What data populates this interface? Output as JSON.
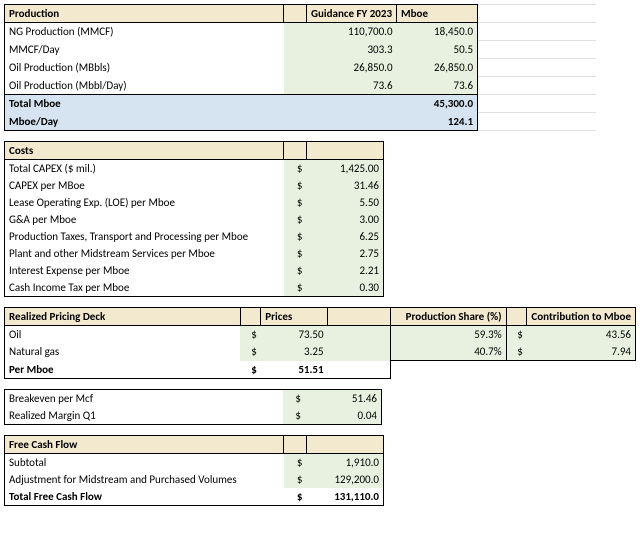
{
  "colors": {
    "header_bg": "#f3e9cf",
    "alt_row_bg": "#e8f1df",
    "highlight_bg": "#d6e4f2",
    "border": "#000000",
    "text": "#000000"
  },
  "production": {
    "header_label": "Production",
    "col_guidance": "Guidance FY 2023",
    "col_mboe": "Mboe",
    "rows": [
      {
        "label": "NG Production (MMCF)",
        "guidance": "110,700.0",
        "mboe": "18,450.0"
      },
      {
        "label": "MMCF/Day",
        "guidance": "303.3",
        "mboe": "50.5"
      },
      {
        "label": "Oil Production (MBbls)",
        "guidance": "26,850.0",
        "mboe": "26,850.0"
      },
      {
        "label": "Oil Production (Mbbl/Day)",
        "guidance": "73.6",
        "mboe": "73.6"
      }
    ],
    "total_label": "Total Mboe",
    "total_value": "45,300.0",
    "perday_label": "Mboe/Day",
    "perday_value": "124.1"
  },
  "costs": {
    "header_label": "Costs",
    "rows": [
      {
        "label": "Total CAPEX ($ mil.)",
        "sym": "$",
        "val": "1,425.00"
      },
      {
        "label": "CAPEX per MBoe",
        "sym": "$",
        "val": "31.46"
      },
      {
        "label": "Lease Operating Exp. (LOE) per Mboe",
        "sym": "$",
        "val": "5.50"
      },
      {
        "label": "G&A per Mboe",
        "sym": "$",
        "val": "3.00"
      },
      {
        "label": "Production Taxes, Transport and Processing per Mboe",
        "sym": "$",
        "val": "6.25"
      },
      {
        "label": "Plant and other Midstream Services per Mboe",
        "sym": "$",
        "val": "2.75"
      },
      {
        "label": "Interest Expense per Mboe",
        "sym": "$",
        "val": "2.21"
      },
      {
        "label": "Cash Income Tax per Mboe",
        "sym": "$",
        "val": "0.30"
      }
    ]
  },
  "pricing": {
    "header_label": "Realized Pricing Deck",
    "col_prices": "Prices",
    "col_share": "Production Share (%)",
    "col_contrib": "Contribution to Mboe",
    "rows": [
      {
        "label": "Oil",
        "sym": "$",
        "price": "73.50",
        "share": "59.3%",
        "csym": "$",
        "contrib": "43.56"
      },
      {
        "label": "Natural gas",
        "sym": "$",
        "price": "3.25",
        "share": "40.7%",
        "csym": "$",
        "contrib": "7.94"
      }
    ],
    "per_label": "Per Mboe",
    "per_sym": "$",
    "per_value": "51.51"
  },
  "breakeven": {
    "rows": [
      {
        "label": "Breakeven per Mcf",
        "sym": "$",
        "val": "51.46"
      },
      {
        "label": "Realized Margin Q1",
        "sym": "$",
        "val": "0.04"
      }
    ]
  },
  "fcf": {
    "header_label": "Free Cash Flow",
    "rows": [
      {
        "label": "Subtotal",
        "sym": "$",
        "val": "1,910.0"
      },
      {
        "label": "Adjustment for Midstream and Purchased Volumes",
        "sym": "$",
        "val": "129,200.0"
      }
    ],
    "total_label": "Total Free Cash Flow",
    "total_sym": "$",
    "total_value": "131,110.0"
  }
}
